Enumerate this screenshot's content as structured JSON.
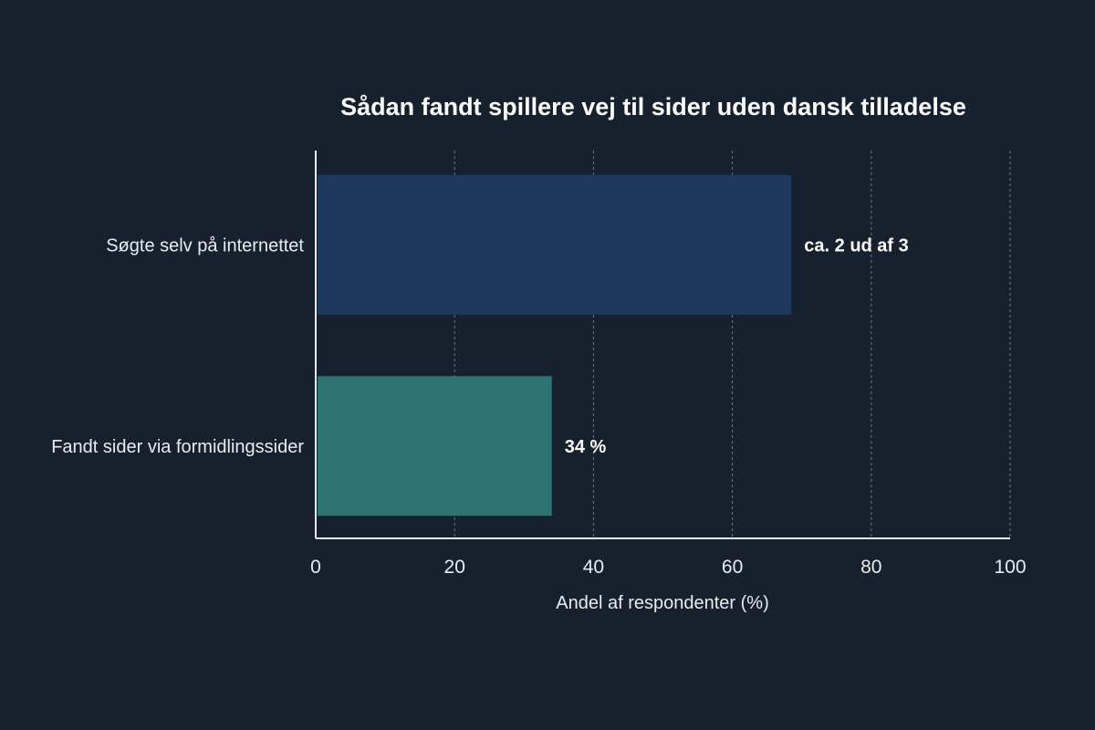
{
  "chart_data": {
    "type": "bar",
    "orientation": "horizontal",
    "title": "Sådan fandt spillere vej til sider uden dansk tilladelse",
    "xlabel": "Andel af respondenter (%)",
    "ylabel": "",
    "xlim": [
      0,
      100
    ],
    "x_ticks": [
      "0",
      "20",
      "40",
      "60",
      "80",
      "100"
    ],
    "grid": true,
    "categories": [
      "Søgte selv på internettet",
      "Fandt sider via formidlingssider"
    ],
    "values": [
      68.5,
      34
    ],
    "data_labels": [
      "ca. 2 ud af 3",
      "34 %"
    ],
    "colors": [
      "#1d3a5c",
      "#2e7470"
    ]
  },
  "colors": {
    "background": "#17212d",
    "text": "#e8ecf0",
    "grid": "#6b7683"
  }
}
